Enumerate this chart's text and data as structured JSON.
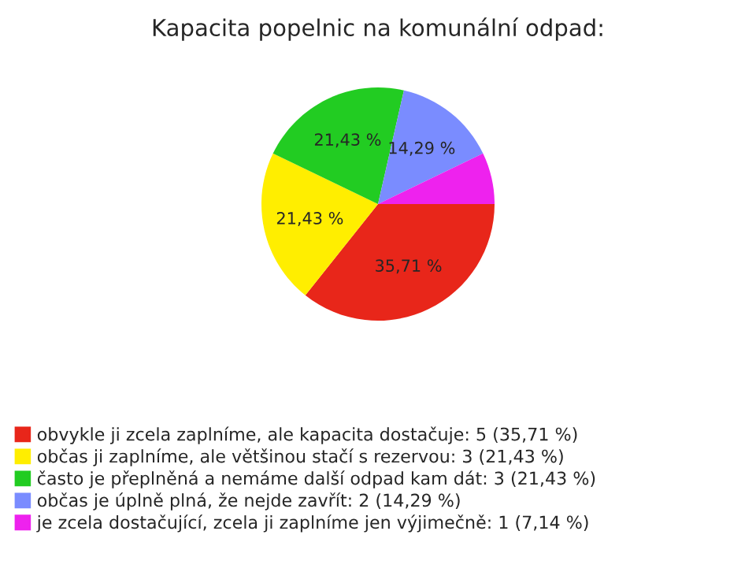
{
  "chart_data": {
    "type": "pie",
    "title": "Kapacita popelnic na komunální odpad:",
    "categories": [
      "obvykle ji zcela zaplníme, ale kapacita dostačuje: 5 (35,71 %)",
      "občas ji zaplníme, ale většinou stačí s rezervou: 3 (21,43 %)",
      "často je přeplněná a nemáme další odpad kam dát: 3 (21,43 %)",
      "občas je úplně plná, že nejde zavřít: 2 (14,29 %)",
      "je zcela dostačující, zcela ji zaplníme jen výjimečně: 1 (7,14 %)"
    ],
    "values": [
      35.71,
      21.43,
      21.43,
      14.29,
      7.14
    ],
    "value_labels": [
      "35,71 %",
      "21,43 %",
      "21,43 %",
      "14,29 %",
      null
    ],
    "colors": [
      "#e8261a",
      "#ffee00",
      "#22cc22",
      "#7a8cff",
      "#ee22ee"
    ],
    "legend": "bottom"
  }
}
